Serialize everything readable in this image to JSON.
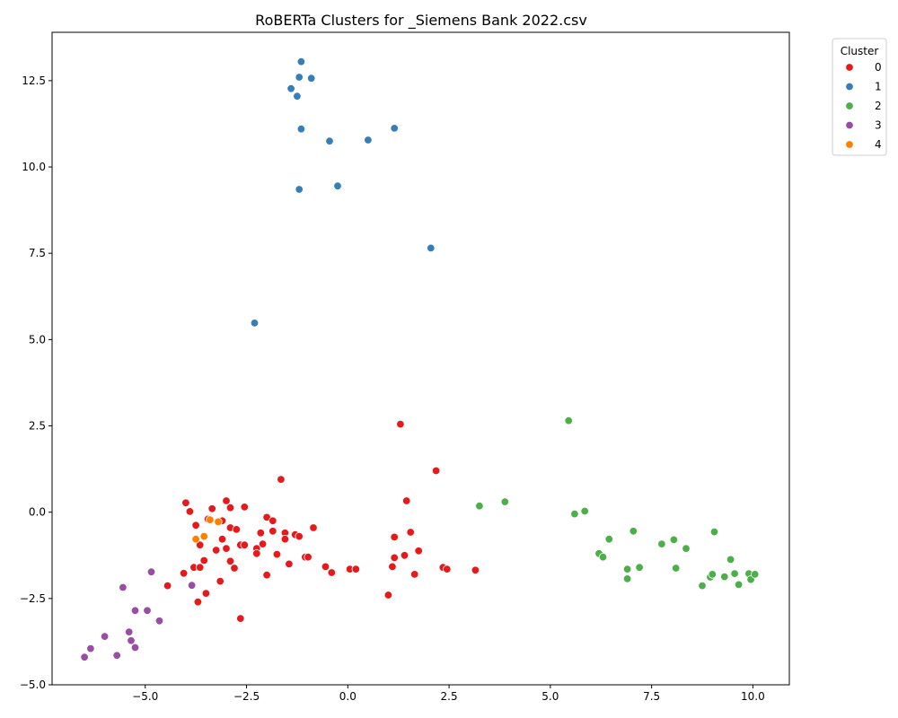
{
  "chart_data": {
    "type": "scatter",
    "title": "RoBERTa Clusters for _Siemens Bank 2022.csv",
    "xlabel": "",
    "ylabel": "",
    "xlim": [
      -7.3,
      10.9
    ],
    "ylim": [
      -5.0,
      13.9
    ],
    "xticks": [
      -5.0,
      -2.5,
      0.0,
      2.5,
      5.0,
      7.5,
      10.0
    ],
    "xtick_labels": [
      "−5.0",
      "−2.5",
      "0.0",
      "2.5",
      "5.0",
      "7.5",
      "10.0"
    ],
    "yticks": [
      -5.0,
      -2.5,
      0.0,
      2.5,
      5.0,
      7.5,
      10.0,
      12.5
    ],
    "ytick_labels": [
      "−5.0",
      "−2.5",
      "0.0",
      "2.5",
      "5.0",
      "7.5",
      "10.0",
      "12.5"
    ],
    "grid": false,
    "legend": {
      "title": "Cluster",
      "placement": "outside-upper-right",
      "entries": [
        "0",
        "1",
        "2",
        "3",
        "4"
      ]
    },
    "series": [
      {
        "name": "0",
        "color": "#e41a1c",
        "points": [
          [
            1.3,
            2.55
          ],
          [
            2.18,
            1.2
          ],
          [
            -1.65,
            0.95
          ],
          [
            1.45,
            0.33
          ],
          [
            -4.0,
            0.27
          ],
          [
            -3.9,
            0.02
          ],
          [
            -3.35,
            0.1
          ],
          [
            -3.0,
            0.33
          ],
          [
            -2.9,
            0.13
          ],
          [
            -2.55,
            0.15
          ],
          [
            -3.75,
            -0.38
          ],
          [
            -3.45,
            -0.2
          ],
          [
            -3.1,
            -0.25
          ],
          [
            -2.9,
            -0.45
          ],
          [
            -2.75,
            -0.5
          ],
          [
            -2.0,
            -0.15
          ],
          [
            -1.85,
            -0.25
          ],
          [
            -2.15,
            -0.6
          ],
          [
            -1.85,
            -0.55
          ],
          [
            -1.55,
            -0.6
          ],
          [
            -1.3,
            -0.65
          ],
          [
            -0.85,
            -0.45
          ],
          [
            1.55,
            -0.58
          ],
          [
            1.15,
            -0.72
          ],
          [
            -3.65,
            -0.95
          ],
          [
            -3.1,
            -0.78
          ],
          [
            -3.0,
            -1.05
          ],
          [
            -3.25,
            -1.1
          ],
          [
            -2.65,
            -0.95
          ],
          [
            -2.55,
            -0.95
          ],
          [
            -2.25,
            -1.05
          ],
          [
            -2.1,
            -0.92
          ],
          [
            -1.55,
            -0.78
          ],
          [
            -1.2,
            -0.7
          ],
          [
            -3.55,
            -1.4
          ],
          [
            -3.8,
            -1.6
          ],
          [
            -3.65,
            -1.6
          ],
          [
            -2.9,
            -1.42
          ],
          [
            -2.8,
            -1.62
          ],
          [
            -2.25,
            -1.2
          ],
          [
            -1.75,
            -1.22
          ],
          [
            -1.45,
            -1.5
          ],
          [
            -1.05,
            -1.3
          ],
          [
            -0.98,
            -1.3
          ],
          [
            -0.55,
            -1.58
          ],
          [
            -0.4,
            -1.75
          ],
          [
            0.05,
            -1.65
          ],
          [
            0.2,
            -1.65
          ],
          [
            1.1,
            -1.58
          ],
          [
            1.15,
            -1.32
          ],
          [
            1.4,
            -1.25
          ],
          [
            1.75,
            -1.12
          ],
          [
            1.65,
            -1.8
          ],
          [
            2.35,
            -1.6
          ],
          [
            2.45,
            -1.65
          ],
          [
            3.15,
            -1.68
          ],
          [
            -2.0,
            -1.82
          ],
          [
            -3.15,
            -2.0
          ],
          [
            -4.05,
            -1.77
          ],
          [
            -4.45,
            -2.13
          ],
          [
            -3.5,
            -2.35
          ],
          [
            -3.7,
            -2.6
          ],
          [
            -2.65,
            -3.08
          ],
          [
            1.0,
            -2.4
          ]
        ]
      },
      {
        "name": "1",
        "color": "#377eb8",
        "points": [
          [
            -1.15,
            13.05
          ],
          [
            -1.2,
            12.6
          ],
          [
            -0.9,
            12.57
          ],
          [
            -1.4,
            12.27
          ],
          [
            -1.25,
            12.05
          ],
          [
            -1.15,
            11.1
          ],
          [
            1.15,
            11.12
          ],
          [
            -0.45,
            10.75
          ],
          [
            0.5,
            10.78
          ],
          [
            -0.25,
            9.45
          ],
          [
            -1.2,
            9.35
          ],
          [
            2.05,
            7.65
          ],
          [
            -2.3,
            5.48
          ]
        ]
      },
      {
        "name": "2",
        "color": "#4daf4a",
        "points": [
          [
            5.45,
            2.65
          ],
          [
            3.25,
            0.18
          ],
          [
            3.88,
            0.3
          ],
          [
            5.6,
            -0.05
          ],
          [
            5.85,
            0.03
          ],
          [
            6.45,
            -0.78
          ],
          [
            7.05,
            -0.55
          ],
          [
            9.05,
            -0.57
          ],
          [
            6.2,
            -1.2
          ],
          [
            6.3,
            -1.3
          ],
          [
            7.75,
            -0.92
          ],
          [
            8.05,
            -0.8
          ],
          [
            8.35,
            -1.05
          ],
          [
            9.45,
            -1.37
          ],
          [
            6.9,
            -1.65
          ],
          [
            7.2,
            -1.6
          ],
          [
            8.1,
            -1.62
          ],
          [
            6.9,
            -1.93
          ],
          [
            8.75,
            -2.13
          ],
          [
            8.95,
            -1.88
          ],
          [
            9.0,
            -1.8
          ],
          [
            9.3,
            -1.87
          ],
          [
            9.55,
            -1.78
          ],
          [
            9.65,
            -2.1
          ],
          [
            9.9,
            -1.78
          ],
          [
            9.95,
            -1.95
          ],
          [
            10.05,
            -1.8
          ]
        ]
      },
      {
        "name": "3",
        "color": "#984ea3",
        "points": [
          [
            -4.85,
            -1.73
          ],
          [
            -3.85,
            -2.12
          ],
          [
            -5.55,
            -2.18
          ],
          [
            -5.25,
            -2.85
          ],
          [
            -4.95,
            -2.85
          ],
          [
            -4.65,
            -3.15
          ],
          [
            -5.4,
            -3.47
          ],
          [
            -6.0,
            -3.6
          ],
          [
            -5.35,
            -3.72
          ],
          [
            -5.25,
            -3.92
          ],
          [
            -6.35,
            -3.95
          ],
          [
            -5.7,
            -4.15
          ],
          [
            -6.5,
            -4.2
          ]
        ]
      },
      {
        "name": "4",
        "color": "#ff7f00",
        "points": [
          [
            -3.75,
            -0.78
          ],
          [
            -3.55,
            -0.7
          ],
          [
            -3.4,
            -0.22
          ],
          [
            -3.2,
            -0.28
          ]
        ]
      }
    ]
  }
}
